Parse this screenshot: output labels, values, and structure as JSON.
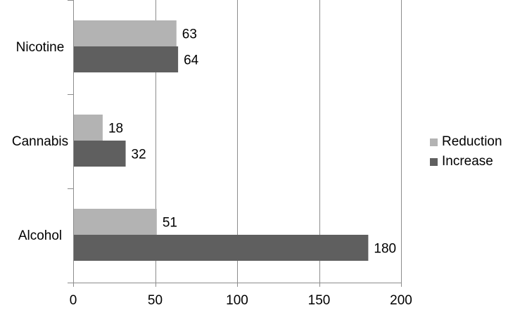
{
  "chart_data": {
    "type": "bar",
    "orientation": "horizontal",
    "title": "",
    "xlabel": "",
    "ylabel": "",
    "categories": [
      "Nicotine",
      "Cannabis",
      "Alcohol"
    ],
    "series": [
      {
        "name": "Reduction",
        "values": [
          63,
          18,
          51
        ],
        "color": "#b3b3b3"
      },
      {
        "name": "Increase",
        "values": [
          64,
          32,
          180
        ],
        "color": "#5f5f5f"
      }
    ],
    "xlim": [
      0,
      200
    ],
    "x_ticks": [
      "0",
      "50",
      "100",
      "150",
      "200"
    ],
    "grid": "vertical",
    "data_labels": true,
    "legend_position": "right"
  }
}
